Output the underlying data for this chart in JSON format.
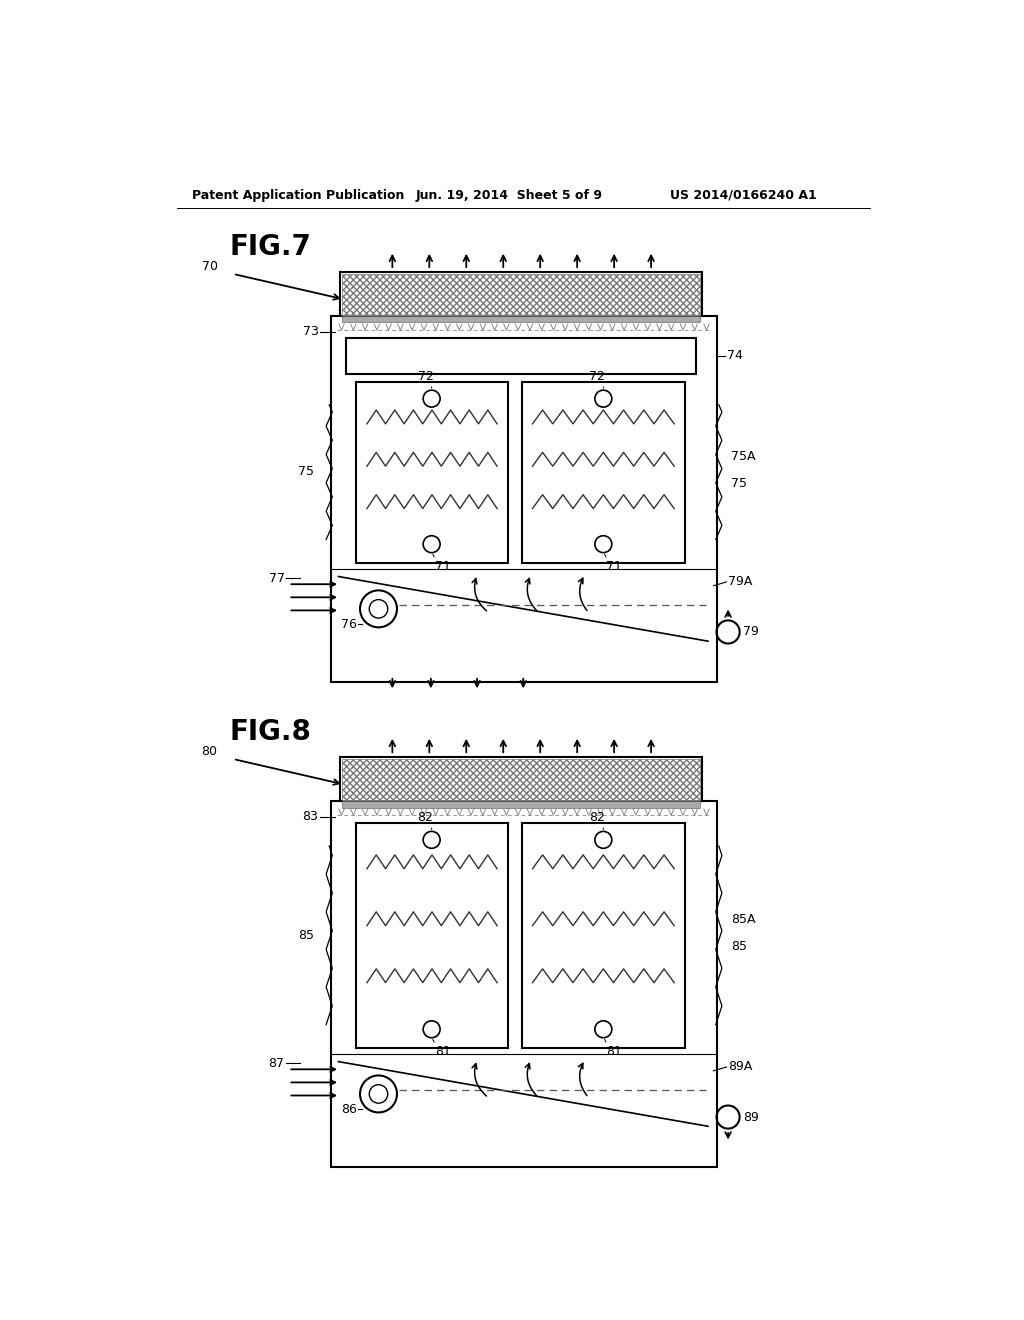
{
  "bg_color": "#ffffff",
  "header_text": "Patent Application Publication",
  "header_date": "Jun. 19, 2014  Sheet 5 of 9",
  "header_patent": "US 2014/0166240 A1",
  "fig7_label": "FIG.7",
  "fig8_label": "FIG.8",
  "line_color": "#000000",
  "lw_main": 1.5,
  "lw_thin": 0.8
}
